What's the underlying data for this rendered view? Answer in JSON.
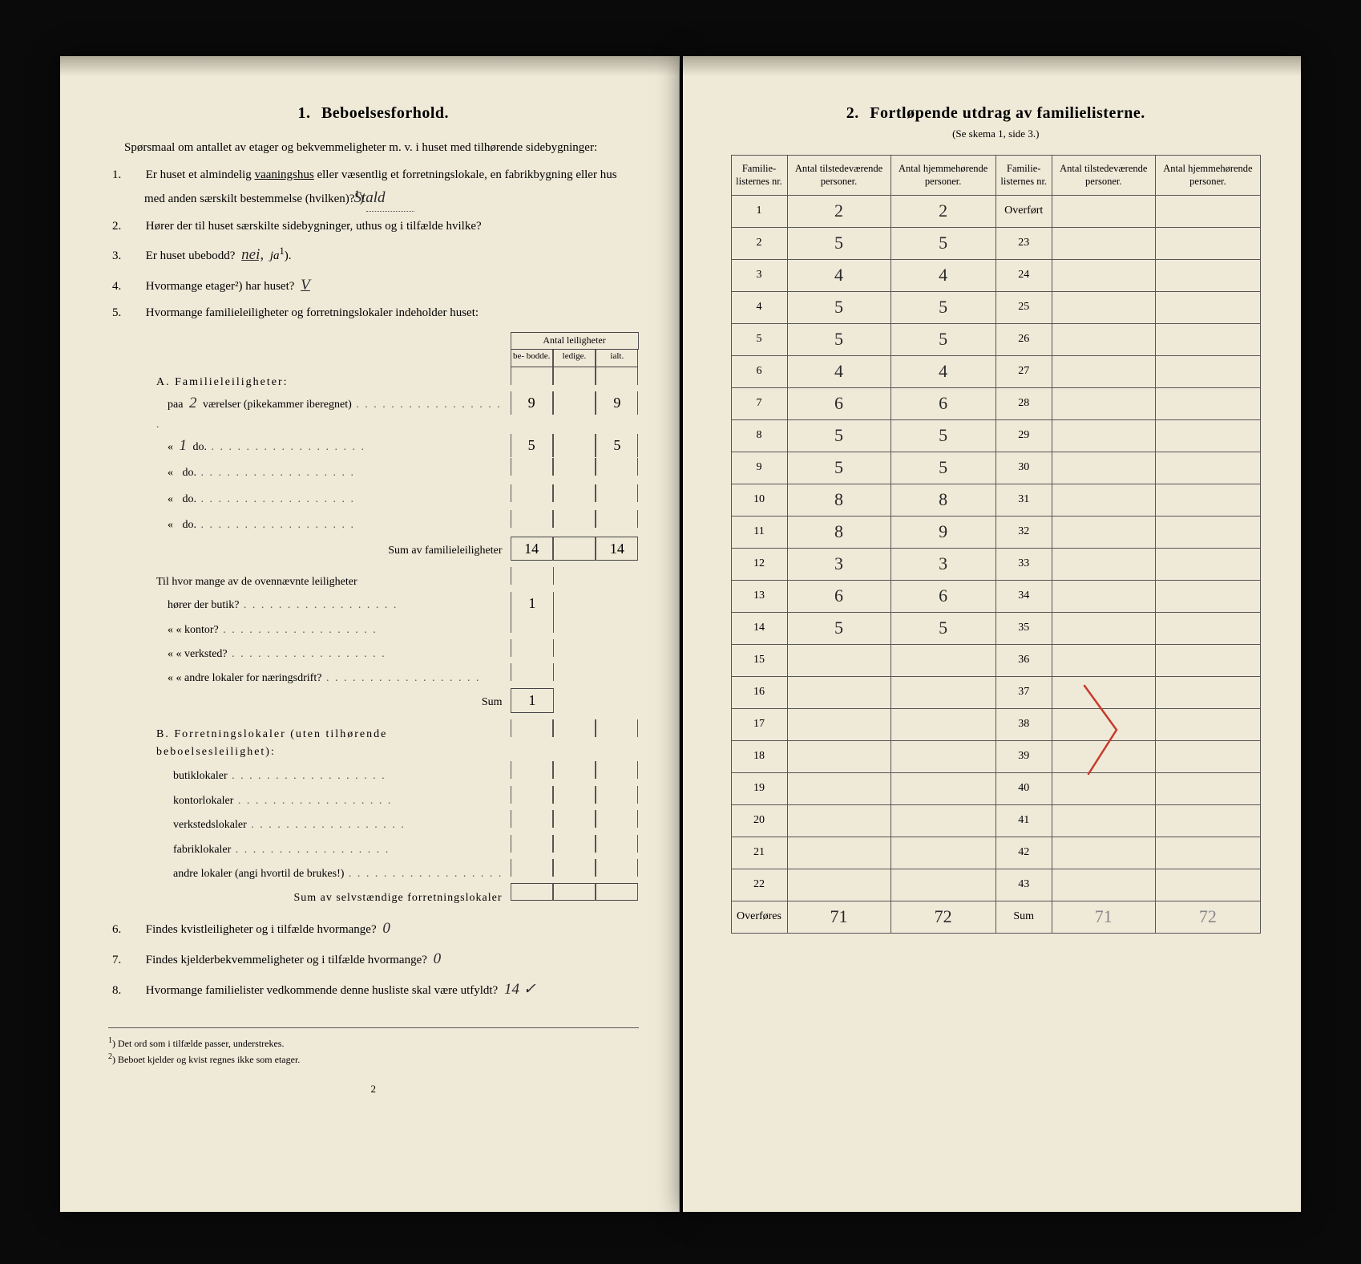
{
  "left": {
    "title_num": "1.",
    "title": "Beboelsesforhold.",
    "intro": "Spørsmaal om antallet av etager og bekvemmeligheter m. v. i huset med tilhørende sidebygninger:",
    "q1": "Er huset et almindelig vaaningshus eller væsentlig et forretningslokale, en fabrikbygning eller hus med anden særskilt bestemmelse (hvilken)?",
    "q1_hand": "Stald",
    "q2": "Hører der til huset særskilte sidebygninger, uthus og i tilfælde hvilke?",
    "q3": "Er huset ubebodd?",
    "q3_hand": "nei,",
    "q3_alt": "ja",
    "q4": "Hvormange etager²) har huset?",
    "q4_hand": "V",
    "q5": "Hvormange familieleiligheter og forretningslokaler indeholder huset:",
    "mini_header_top": "Antal leiligheter",
    "mini_cols": [
      "be-\nbodde.",
      "ledige.",
      "ialt."
    ],
    "A_title": "A. Familieleiligheter:",
    "A_rows": [
      {
        "label": "paa",
        "hand_pre": "2",
        "rest": "værelser (pikekammer iberegnet)",
        "vals": [
          "9",
          "",
          "9"
        ]
      },
      {
        "label": "«",
        "hand_pre": "1",
        "rest": "do.",
        "vals": [
          "5",
          "",
          "5"
        ]
      },
      {
        "label": "«",
        "hand_pre": "",
        "rest": "do.",
        "vals": [
          "",
          "",
          ""
        ]
      },
      {
        "label": "«",
        "hand_pre": "",
        "rest": "do.",
        "vals": [
          "",
          "",
          ""
        ]
      },
      {
        "label": "«",
        "hand_pre": "",
        "rest": "do.",
        "vals": [
          "",
          "",
          ""
        ]
      }
    ],
    "A_sum_label": "Sum av familieleiligheter",
    "A_sum_vals": [
      "14",
      "",
      "14"
    ],
    "Til_label": "Til hvor mange av de ovennævnte leiligheter",
    "Til_rows": [
      {
        "label": "hører der butik?",
        "val": "1"
      },
      {
        "label": "«     « kontor?",
        "val": ""
      },
      {
        "label": "«     « verksted?",
        "val": ""
      },
      {
        "label": "«     « andre lokaler for næringsdrift?",
        "val": ""
      }
    ],
    "Til_sum_label": "Sum",
    "Til_sum_val": "1",
    "B_title": "B. Forretningslokaler (uten tilhørende beboelsesleilighet):",
    "B_rows": [
      "butiklokaler",
      "kontorlokaler",
      "verkstedslokaler",
      "fabriklokaler",
      "andre lokaler (angi hvortil de brukes!)"
    ],
    "B_sum_label": "Sum av selvstændige forretningslokaler",
    "q6": "Findes kvistleiligheter og i tilfælde hvormange?",
    "q6_hand": "0",
    "q7": "Findes kjelderbekvemmeligheter og i tilfælde hvormange?",
    "q7_hand": "0",
    "q8": "Hvormange familielister vedkommende denne husliste skal være utfyldt?",
    "q8_hand": "14  ✓",
    "fn1": "Det ord som i tilfælde passer, understrekes.",
    "fn2": "Beboet kjelder og kvist regnes ikke som etager.",
    "pagenum": "2"
  },
  "right": {
    "title_num": "2.",
    "title": "Fortløpende utdrag av familielisterne.",
    "subtitle": "(Se skema 1, side 3.)",
    "columns": [
      "Familie-\nlisternes\nnr.",
      "Antal\ntilstedeværende\npersoner.",
      "Antal\nhjemmehørende\npersoner.",
      "Familie-\nlisternes\nnr.",
      "Antal\ntilstedeværende\npersoner.",
      "Antal\nhjemmehørende\npersoner."
    ],
    "rows": [
      {
        "n1": "1",
        "a": "2",
        "b": "2",
        "n2": "Overført",
        "c": "",
        "d": ""
      },
      {
        "n1": "2",
        "a": "5",
        "b": "5",
        "n2": "23",
        "c": "",
        "d": ""
      },
      {
        "n1": "3",
        "a": "4",
        "b": "4",
        "n2": "24",
        "c": "",
        "d": ""
      },
      {
        "n1": "4",
        "a": "5",
        "b": "5",
        "n2": "25",
        "c": "",
        "d": ""
      },
      {
        "n1": "5",
        "a": "5",
        "b": "5",
        "n2": "26",
        "c": "",
        "d": ""
      },
      {
        "n1": "6",
        "a": "4",
        "b": "4",
        "n2": "27",
        "c": "",
        "d": ""
      },
      {
        "n1": "7",
        "a": "6",
        "b": "6",
        "n2": "28",
        "c": "",
        "d": ""
      },
      {
        "n1": "8",
        "a": "5",
        "b": "5",
        "n2": "29",
        "c": "",
        "d": ""
      },
      {
        "n1": "9",
        "a": "5",
        "b": "5",
        "n2": "30",
        "c": "",
        "d": ""
      },
      {
        "n1": "10",
        "a": "8",
        "b": "8",
        "n2": "31",
        "c": "",
        "d": ""
      },
      {
        "n1": "11",
        "a": "8",
        "b": "9",
        "n2": "32",
        "c": "",
        "d": ""
      },
      {
        "n1": "12",
        "a": "3",
        "b": "3",
        "n2": "33",
        "c": "",
        "d": ""
      },
      {
        "n1": "13",
        "a": "6",
        "b": "6",
        "n2": "34",
        "c": "",
        "d": ""
      },
      {
        "n1": "14",
        "a": "5",
        "b": "5",
        "n2": "35",
        "c": "",
        "d": ""
      },
      {
        "n1": "15",
        "a": "",
        "b": "",
        "n2": "36",
        "c": "",
        "d": ""
      },
      {
        "n1": "16",
        "a": "",
        "b": "",
        "n2": "37",
        "c": "",
        "d": ""
      },
      {
        "n1": "17",
        "a": "",
        "b": "",
        "n2": "38",
        "c": "",
        "d": ""
      },
      {
        "n1": "18",
        "a": "",
        "b": "",
        "n2": "39",
        "c": "",
        "d": ""
      },
      {
        "n1": "19",
        "a": "",
        "b": "",
        "n2": "40",
        "c": "",
        "d": ""
      },
      {
        "n1": "20",
        "a": "",
        "b": "",
        "n2": "41",
        "c": "",
        "d": ""
      },
      {
        "n1": "21",
        "a": "",
        "b": "",
        "n2": "42",
        "c": "",
        "d": ""
      },
      {
        "n1": "22",
        "a": "",
        "b": "",
        "n2": "43",
        "c": "",
        "d": ""
      }
    ],
    "footer": {
      "l1": "Overføres",
      "a": "71",
      "b": "72",
      "l2": "Sum",
      "c": "71",
      "d": "72"
    },
    "red_stroke_color": "#c83a2a"
  },
  "colors": {
    "paper": "#efe9d8",
    "ink": "#1a1a1a",
    "border": "#555555",
    "bg": "#0a0a0a"
  }
}
